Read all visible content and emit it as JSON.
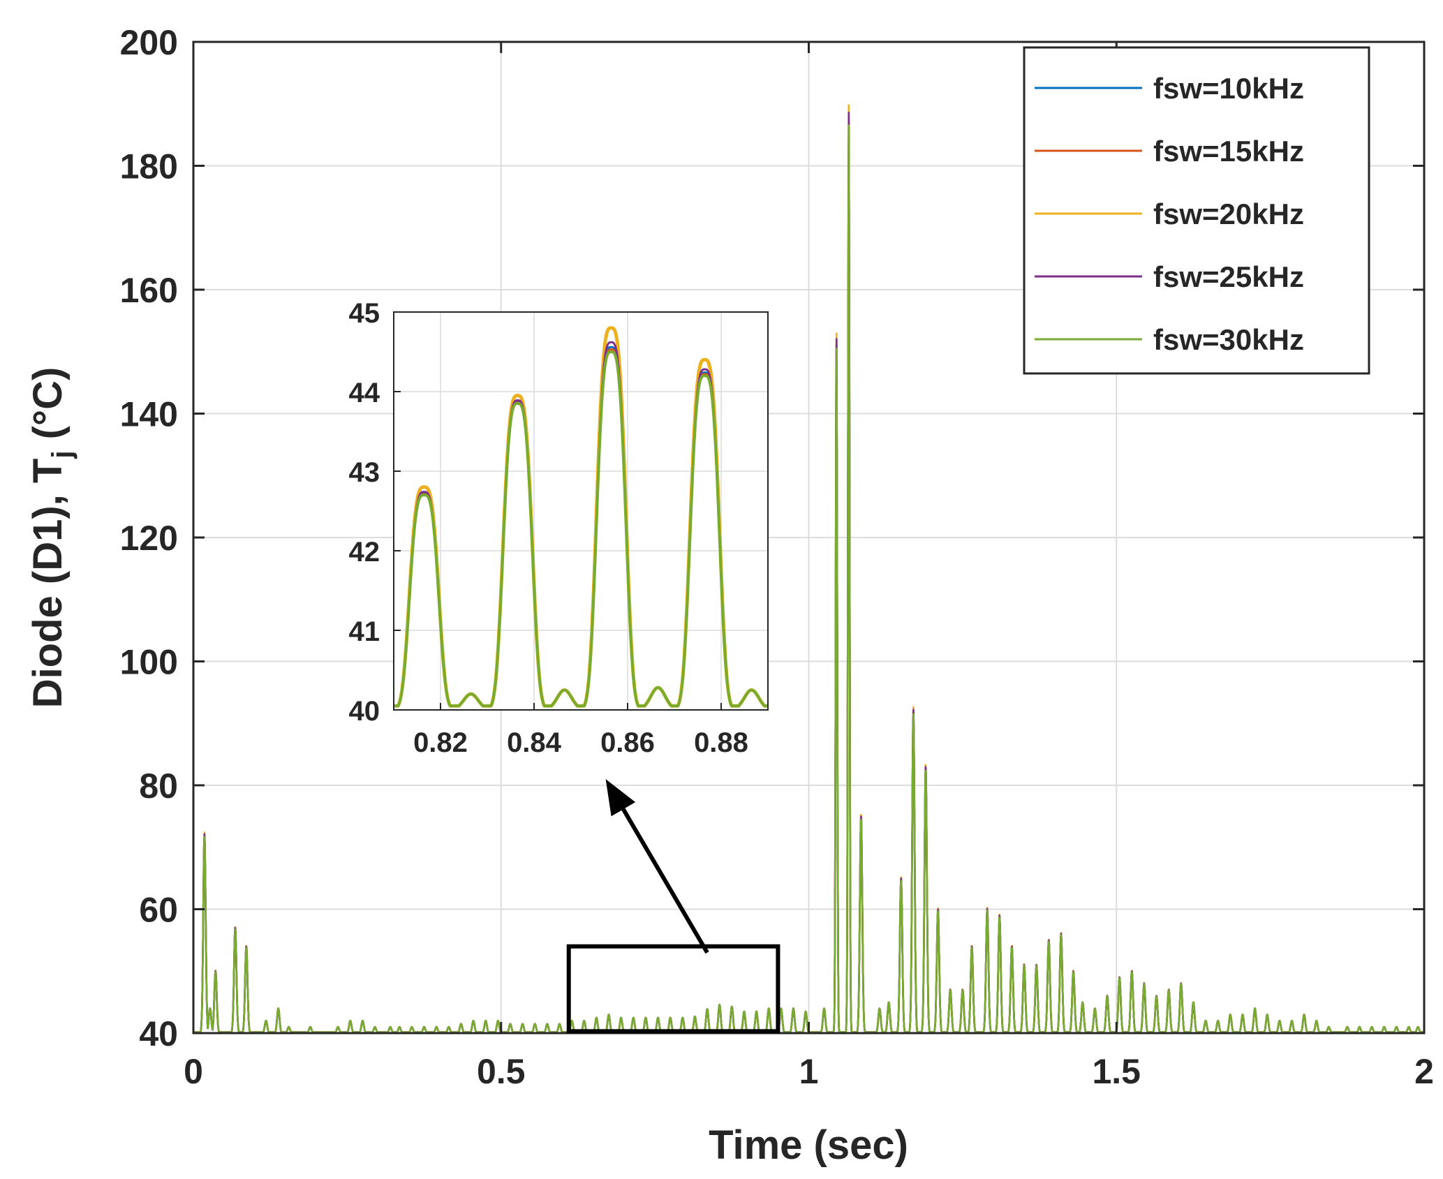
{
  "chart_data": [
    {
      "id": "main",
      "type": "line",
      "title": "",
      "xlabel": "Time (sec)",
      "ylabel": "Diode (D1), T",
      "ylabel_subscript": "j",
      "ylabel_suffix": " (°C)",
      "xlim": [
        0,
        2
      ],
      "ylim": [
        40,
        200
      ],
      "xticks": [
        0,
        0.5,
        1,
        1.5,
        2
      ],
      "xtick_labels": [
        "0",
        "0.5",
        "1",
        "1.5",
        "2"
      ],
      "yticks": [
        40,
        60,
        80,
        100,
        120,
        140,
        160,
        180,
        200
      ],
      "ytick_labels": [
        "40",
        "60",
        "80",
        "100",
        "120",
        "140",
        "160",
        "180",
        "200"
      ],
      "grid": true,
      "legend_position": "top-right",
      "series": [
        {
          "name": "fsw=10kHz",
          "color": "#0072BD"
        },
        {
          "name": "fsw=15kHz",
          "color": "#D95319"
        },
        {
          "name": "fsw=20kHz",
          "color": "#EDB120"
        },
        {
          "name": "fsw=25kHz",
          "color": "#7E2F8E"
        },
        {
          "name": "fsw=30kHz",
          "color": "#77AC30"
        }
      ],
      "peaks": [
        [
          0.018,
          72
        ],
        [
          0.027,
          44
        ],
        [
          0.036,
          50
        ],
        [
          0.068,
          57
        ],
        [
          0.086,
          54
        ],
        [
          0.118,
          42
        ],
        [
          0.138,
          44
        ],
        [
          0.155,
          41
        ],
        [
          0.19,
          41
        ],
        [
          0.235,
          41
        ],
        [
          0.255,
          42
        ],
        [
          0.275,
          42
        ],
        [
          0.295,
          41
        ],
        [
          0.32,
          41
        ],
        [
          0.335,
          41
        ],
        [
          0.355,
          41
        ],
        [
          0.375,
          41
        ],
        [
          0.395,
          41
        ],
        [
          0.415,
          41
        ],
        [
          0.435,
          41.5
        ],
        [
          0.455,
          42
        ],
        [
          0.475,
          42
        ],
        [
          0.495,
          42
        ],
        [
          0.515,
          41.5
        ],
        [
          0.535,
          41.5
        ],
        [
          0.555,
          41.5
        ],
        [
          0.575,
          41.5
        ],
        [
          0.595,
          41.5
        ],
        [
          0.615,
          42
        ],
        [
          0.635,
          42
        ],
        [
          0.655,
          42.5
        ],
        [
          0.675,
          43
        ],
        [
          0.695,
          42.5
        ],
        [
          0.715,
          42.5
        ],
        [
          0.735,
          42.5
        ],
        [
          0.755,
          42.5
        ],
        [
          0.775,
          42.5
        ],
        [
          0.795,
          42.5
        ],
        [
          0.815,
          42.7
        ],
        [
          0.835,
          43.9
        ],
        [
          0.855,
          44.6
        ],
        [
          0.875,
          44.3
        ],
        [
          0.895,
          43.5
        ],
        [
          0.915,
          43.5
        ],
        [
          0.935,
          44
        ],
        [
          0.955,
          44
        ],
        [
          0.975,
          44
        ],
        [
          0.995,
          43.5
        ],
        [
          1.025,
          44
        ],
        [
          1.045,
          153
        ],
        [
          1.065,
          188
        ],
        [
          1.085,
          75
        ],
        [
          1.115,
          44
        ],
        [
          1.13,
          45
        ],
        [
          1.15,
          65
        ],
        [
          1.17,
          92
        ],
        [
          1.19,
          83
        ],
        [
          1.21,
          60
        ],
        [
          1.23,
          47
        ],
        [
          1.25,
          47
        ],
        [
          1.265,
          54
        ],
        [
          1.29,
          60
        ],
        [
          1.31,
          59
        ],
        [
          1.33,
          54
        ],
        [
          1.35,
          51
        ],
        [
          1.37,
          51
        ],
        [
          1.39,
          55
        ],
        [
          1.41,
          56
        ],
        [
          1.43,
          50
        ],
        [
          1.445,
          45
        ],
        [
          1.465,
          44
        ],
        [
          1.485,
          46
        ],
        [
          1.505,
          49
        ],
        [
          1.525,
          50
        ],
        [
          1.545,
          48
        ],
        [
          1.565,
          46
        ],
        [
          1.585,
          47
        ],
        [
          1.605,
          48
        ],
        [
          1.625,
          45
        ],
        [
          1.645,
          42
        ],
        [
          1.665,
          42
        ],
        [
          1.685,
          43
        ],
        [
          1.705,
          43
        ],
        [
          1.725,
          44
        ],
        [
          1.745,
          43
        ],
        [
          1.765,
          42
        ],
        [
          1.785,
          42
        ],
        [
          1.805,
          43
        ],
        [
          1.825,
          42
        ],
        [
          1.845,
          41
        ],
        [
          1.875,
          41
        ],
        [
          1.895,
          41
        ],
        [
          1.915,
          41
        ],
        [
          1.935,
          41
        ],
        [
          1.955,
          41
        ],
        [
          1.975,
          41
        ],
        [
          1.99,
          41
        ]
      ],
      "zoom_box": {
        "x": [
          0.61,
          0.95
        ],
        "y": [
          40.3,
          54
        ]
      },
      "arrow": {
        "from": [
          0.835,
          53
        ],
        "to": [
          0.67,
          81
        ]
      }
    },
    {
      "id": "inset",
      "type": "line",
      "xlim": [
        0.81,
        0.89
      ],
      "ylim": [
        40,
        45
      ],
      "xticks": [
        0.82,
        0.84,
        0.86,
        0.88
      ],
      "xtick_labels": [
        "0.82",
        "0.84",
        "0.86",
        "0.88"
      ],
      "yticks": [
        40,
        41,
        42,
        43,
        44,
        45
      ],
      "ytick_labels": [
        "40",
        "41",
        "42",
        "43",
        "44",
        "45"
      ],
      "grid": true,
      "peaks": [
        {
          "center": 0.8165,
          "height": 42.7,
          "yellow_extra": 0.1
        },
        {
          "center": 0.8365,
          "height": 43.85,
          "yellow_extra": 0.1
        },
        {
          "center": 0.8565,
          "height": 44.5,
          "yellow_extra": 0.3
        },
        {
          "center": 0.8765,
          "height": 44.2,
          "yellow_extra": 0.2
        }
      ],
      "valleys": [
        {
          "center": 0.8265,
          "height": 40.2
        },
        {
          "center": 0.8465,
          "height": 40.25
        },
        {
          "center": 0.8665,
          "height": 40.28
        },
        {
          "center": 0.8865,
          "height": 40.25
        }
      ]
    }
  ]
}
